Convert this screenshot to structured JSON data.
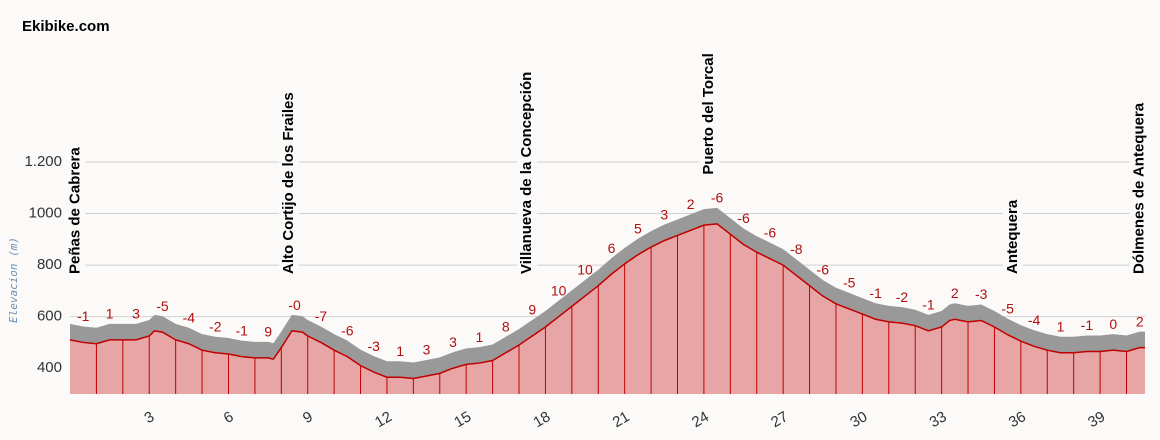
{
  "chart_data": {
    "type": "area",
    "title": "Ekibike.com",
    "y_label": "Elevacion (m)",
    "color": "#e8a5a5",
    "line_color": "#c00000",
    "band_color": "#999999",
    "xlim": [
      0,
      40.7
    ],
    "xticks": [
      3,
      6,
      9,
      12,
      15,
      18,
      21,
      24,
      27,
      30,
      33,
      36,
      39
    ],
    "ylim": [
      300,
      1200
    ],
    "yticks": [
      400,
      600,
      800,
      1000,
      {
        "value": 1200,
        "label": "1.200"
      }
    ],
    "grid": true,
    "x": [
      0,
      0.5,
      1,
      1.5,
      2,
      2.5,
      3,
      3.2,
      3.5,
      4,
      4.5,
      5,
      5.5,
      6,
      6.5,
      7,
      7.5,
      7.7,
      8,
      8.4,
      8.8,
      9,
      9.5,
      10,
      10.5,
      11,
      11.5,
      12,
      12.5,
      13,
      13.5,
      14,
      14.5,
      15,
      15.5,
      16,
      16.5,
      17,
      17.5,
      18,
      18.5,
      19,
      19.5,
      20,
      20.5,
      21,
      21.5,
      22,
      22.5,
      23,
      23.5,
      24,
      24.5,
      25,
      25.5,
      26,
      26.5,
      27,
      27.5,
      28,
      28.5,
      29,
      29.5,
      30,
      30.5,
      31,
      31.5,
      32,
      32.5,
      33,
      33.3,
      33.5,
      34,
      34.5,
      35,
      35.5,
      36,
      36.5,
      37,
      37.5,
      38,
      38.5,
      39,
      39.5,
      40,
      40.5,
      40.7
    ],
    "values": [
      510,
      500,
      495,
      510,
      510,
      510,
      525,
      545,
      540,
      510,
      495,
      470,
      460,
      455,
      445,
      440,
      440,
      435,
      480,
      545,
      540,
      525,
      500,
      470,
      445,
      410,
      385,
      365,
      365,
      360,
      370,
      380,
      400,
      415,
      420,
      430,
      460,
      490,
      525,
      560,
      600,
      640,
      680,
      720,
      765,
      805,
      840,
      870,
      895,
      915,
      935,
      955,
      960,
      920,
      880,
      850,
      825,
      800,
      760,
      720,
      680,
      650,
      630,
      610,
      590,
      580,
      575,
      565,
      545,
      560,
      585,
      590,
      580,
      585,
      560,
      530,
      505,
      485,
      470,
      460,
      460,
      465,
      465,
      470,
      465,
      480,
      480
    ],
    "grades": [
      -1,
      1,
      3,
      -5,
      -4,
      -2,
      -1,
      9,
      0,
      -7,
      -6,
      -3,
      1,
      3,
      3,
      1,
      8,
      9,
      10,
      10,
      6,
      5,
      3,
      2,
      -6,
      -6,
      -6,
      -8,
      -6,
      -5,
      -1,
      -2,
      -1,
      2,
      -3,
      -5,
      -4,
      1,
      -1,
      0,
      2
    ],
    "grade_labels": [
      "-1",
      "1",
      "3",
      "-5",
      "-4",
      "-2",
      "-1",
      "9",
      "-0",
      "-7",
      "-6",
      "-3",
      "1",
      "3",
      "3",
      "1",
      "8",
      "9",
      "10",
      "10",
      "6",
      "5",
      "3",
      "2",
      "-6",
      "-6",
      "-6",
      "-8",
      "-6",
      "-5",
      "-1",
      "-2",
      "-1",
      "2",
      "-3",
      "-5",
      "-4",
      "1",
      "-1",
      "0",
      "2"
    ],
    "waypoints": [
      {
        "name": "Peñas de Cabrera",
        "km": 0.2
      },
      {
        "name": "Alto Cortijo de los Frailes",
        "km": 8.3
      },
      {
        "name": "Villanueva de la Concepción",
        "km": 17.3
      },
      {
        "name": "Puerto del Torcal",
        "km": 24.2
      },
      {
        "name": "Antequera",
        "km": 35.7
      },
      {
        "name": "Dólmenes de Antequera",
        "km": 40.5
      }
    ]
  }
}
